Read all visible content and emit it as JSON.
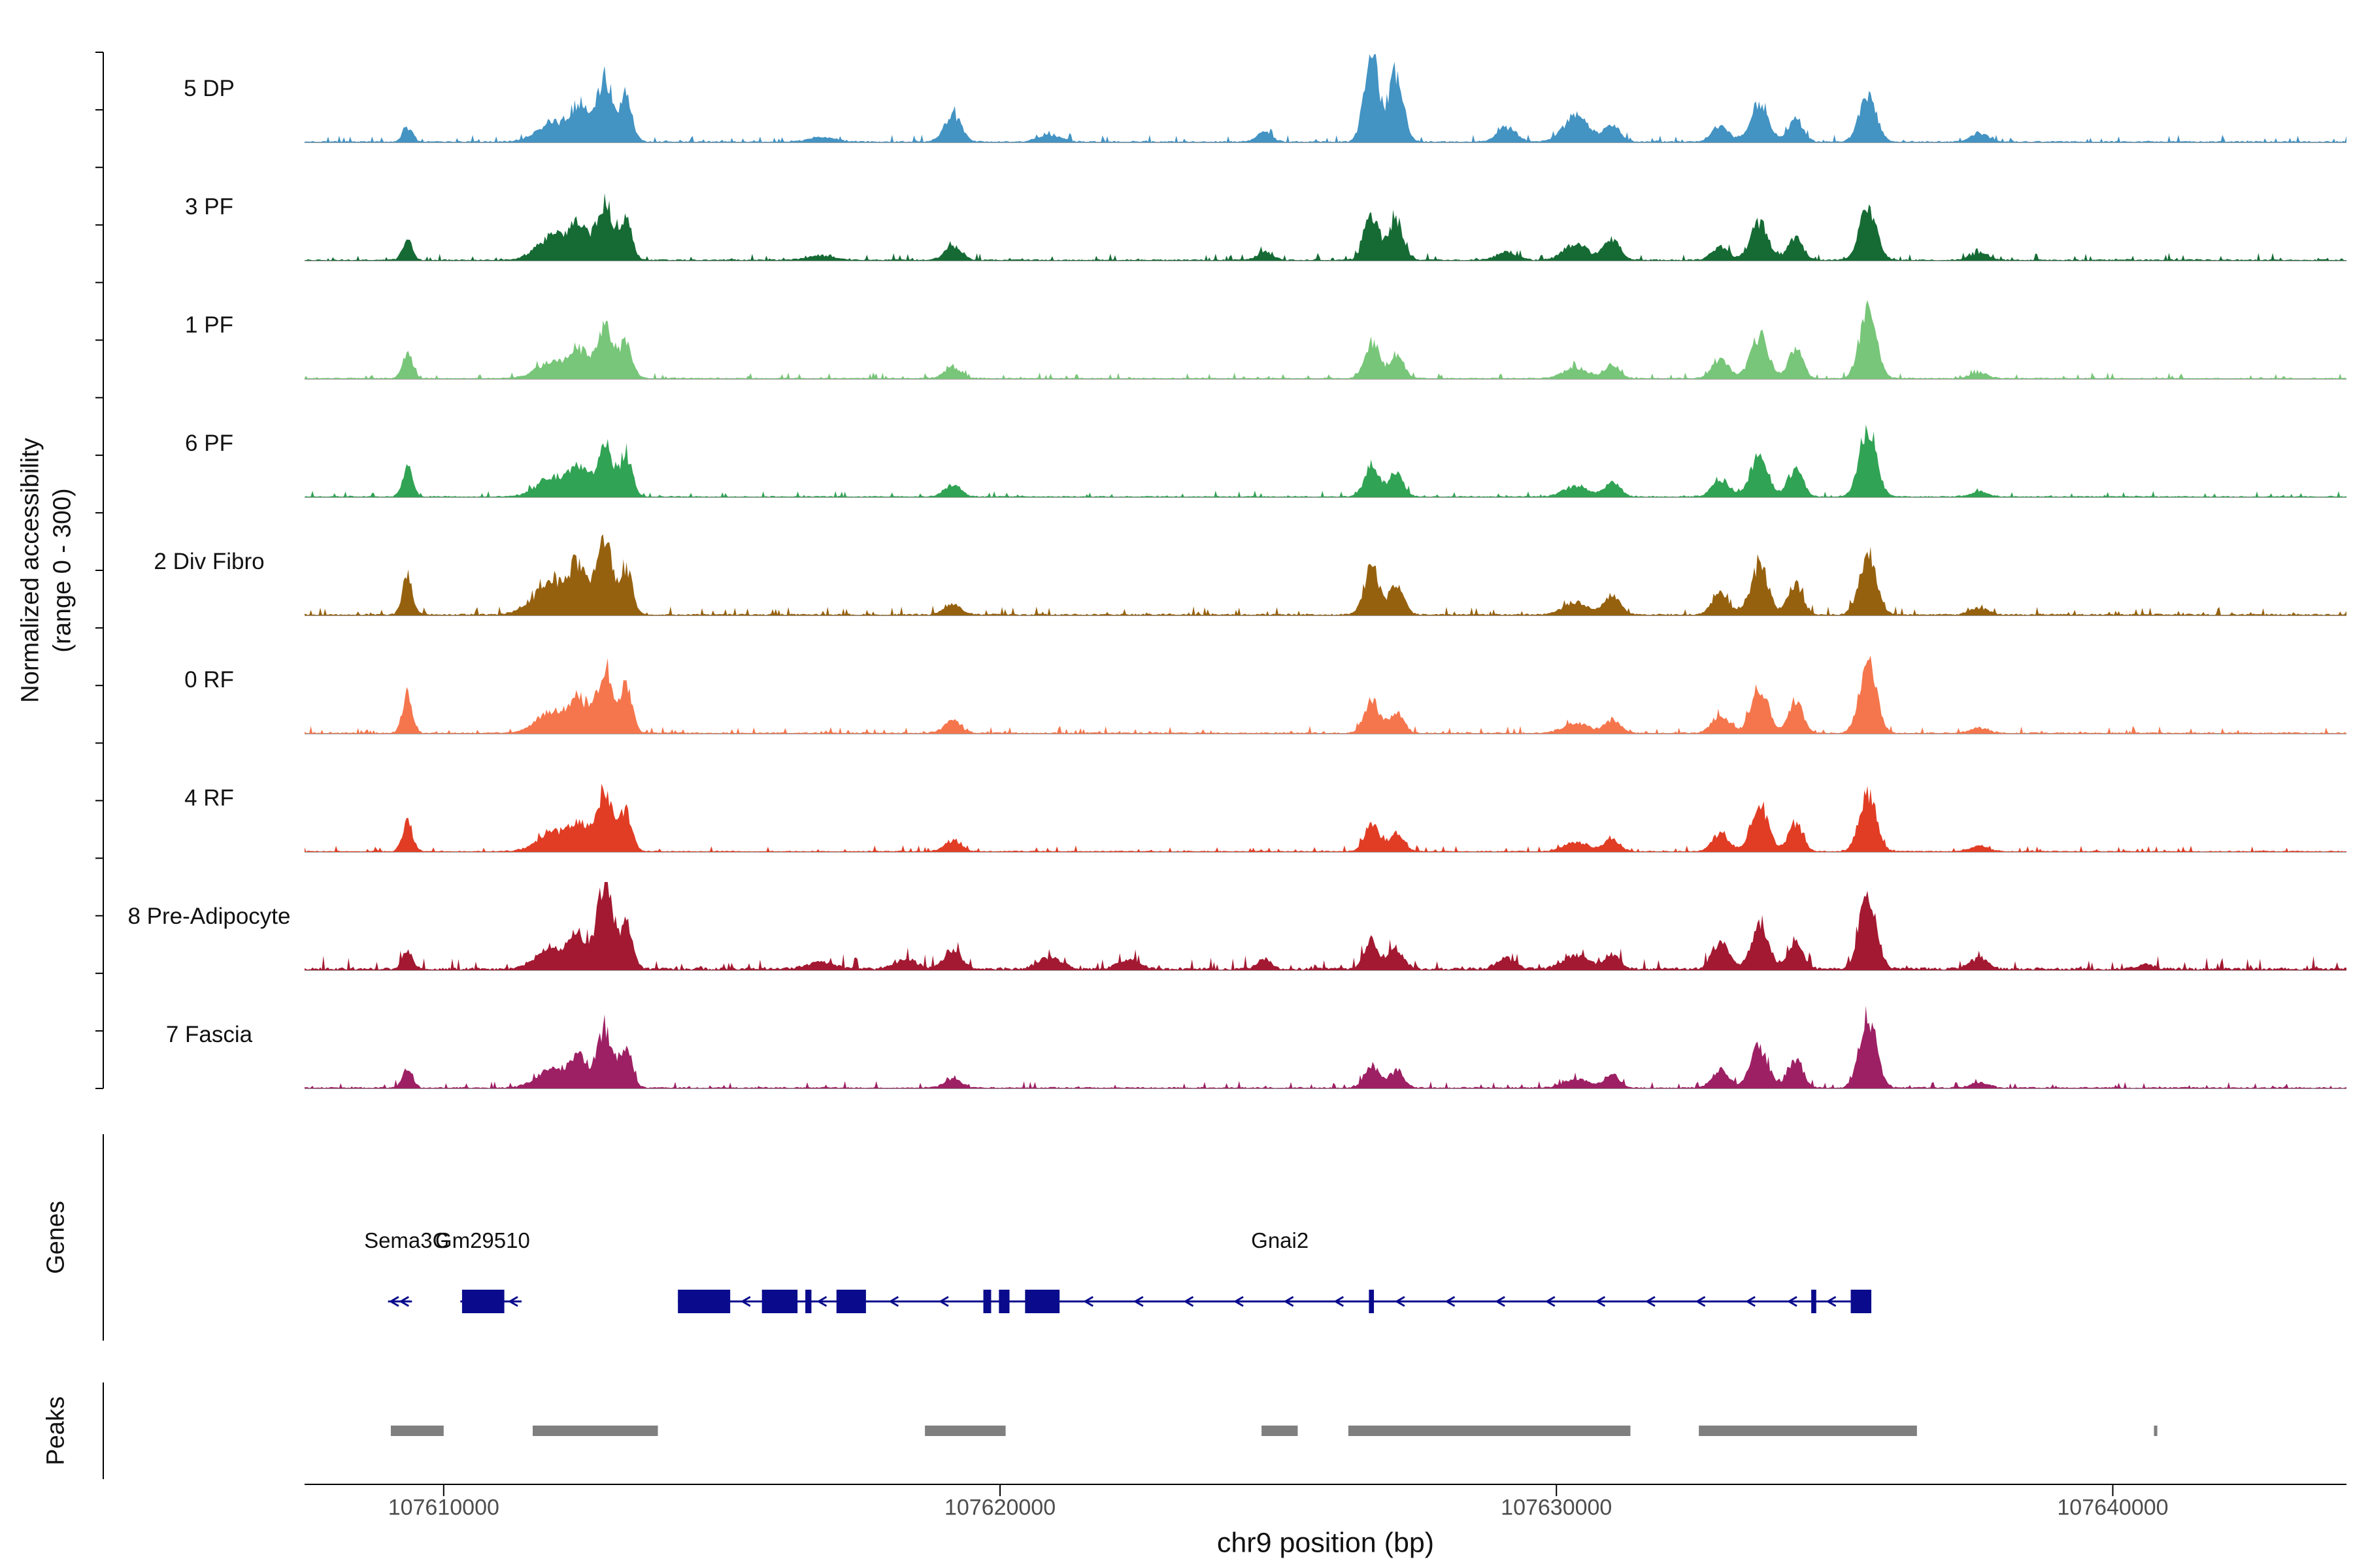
{
  "chart_data": {
    "type": "area",
    "title": "",
    "ylabel": "Normalized accessibility\n(range 0 - 300)",
    "xlabel": "chr9 position (bp)",
    "genes_section_label": "Genes",
    "peaks_section_label": "Peaks",
    "x_range_bp": [
      107607500,
      107644200
    ],
    "y_range_per_track": [
      0,
      300
    ],
    "x_ticks": [
      {
        "bp": 107610000,
        "label": "107610000"
      },
      {
        "bp": 107620000,
        "label": "107620000"
      },
      {
        "bp": 107630000,
        "label": "107630000"
      },
      {
        "bp": 107640000,
        "label": "107640000"
      }
    ],
    "colors": {
      "gene": "#0a0a8c",
      "peak_bar": "#7f7f7f",
      "baseline": "#9e9e9e",
      "axis": "#000000"
    },
    "tracks": [
      {
        "label": "5 DP",
        "color": "#4393c3",
        "seed": 11,
        "noise": 0.03,
        "peaks": [
          [
            107609350,
            0.16,
            90
          ],
          [
            107612000,
            0.22,
            300
          ],
          [
            107612450,
            0.38,
            150
          ],
          [
            107612900,
            0.72,
            140
          ],
          [
            107613280,
            0.52,
            110
          ],
          [
            107616800,
            0.05,
            250
          ],
          [
            107619150,
            0.3,
            150
          ],
          [
            107620900,
            0.08,
            200
          ],
          [
            107624750,
            0.12,
            130
          ],
          [
            107626680,
            0.95,
            130
          ],
          [
            107627120,
            0.78,
            130
          ],
          [
            107629100,
            0.16,
            170
          ],
          [
            107630350,
            0.3,
            220
          ],
          [
            107631000,
            0.2,
            140
          ],
          [
            107632950,
            0.18,
            150
          ],
          [
            107633650,
            0.45,
            160
          ],
          [
            107634300,
            0.26,
            130
          ],
          [
            107635600,
            0.52,
            150
          ],
          [
            107637600,
            0.1,
            160
          ]
        ]
      },
      {
        "label": "3 PF",
        "color": "#166b35",
        "seed": 22,
        "noise": 0.03,
        "peaks": [
          [
            107609350,
            0.22,
            90
          ],
          [
            107612000,
            0.28,
            300
          ],
          [
            107612450,
            0.34,
            150
          ],
          [
            107612900,
            0.66,
            140
          ],
          [
            107613280,
            0.46,
            110
          ],
          [
            107616800,
            0.05,
            250
          ],
          [
            107619150,
            0.16,
            150
          ],
          [
            107624750,
            0.1,
            130
          ],
          [
            107626680,
            0.52,
            130
          ],
          [
            107627120,
            0.46,
            130
          ],
          [
            107629100,
            0.1,
            170
          ],
          [
            107630350,
            0.18,
            220
          ],
          [
            107631000,
            0.24,
            140
          ],
          [
            107632950,
            0.16,
            150
          ],
          [
            107633650,
            0.42,
            160
          ],
          [
            107634300,
            0.26,
            130
          ],
          [
            107635600,
            0.6,
            150
          ],
          [
            107637600,
            0.08,
            160
          ]
        ]
      },
      {
        "label": "1 PF",
        "color": "#78c679",
        "seed": 33,
        "noise": 0.025,
        "peaks": [
          [
            107609350,
            0.3,
            90
          ],
          [
            107612000,
            0.2,
            300
          ],
          [
            107612450,
            0.26,
            150
          ],
          [
            107612900,
            0.58,
            140
          ],
          [
            107613280,
            0.42,
            110
          ],
          [
            107619150,
            0.12,
            150
          ],
          [
            107626680,
            0.4,
            130
          ],
          [
            107627120,
            0.28,
            130
          ],
          [
            107630350,
            0.12,
            220
          ],
          [
            107631000,
            0.15,
            140
          ],
          [
            107632950,
            0.22,
            150
          ],
          [
            107633650,
            0.48,
            160
          ],
          [
            107634300,
            0.34,
            130
          ],
          [
            107635600,
            0.78,
            150
          ],
          [
            107637600,
            0.06,
            160
          ]
        ]
      },
      {
        "label": "6 PF",
        "color": "#31a354",
        "seed": 44,
        "noise": 0.025,
        "peaks": [
          [
            107609350,
            0.34,
            90
          ],
          [
            107612000,
            0.22,
            300
          ],
          [
            107612450,
            0.28,
            150
          ],
          [
            107612900,
            0.62,
            140
          ],
          [
            107613280,
            0.46,
            110
          ],
          [
            107619150,
            0.13,
            150
          ],
          [
            107626680,
            0.36,
            130
          ],
          [
            107627120,
            0.26,
            130
          ],
          [
            107630350,
            0.12,
            220
          ],
          [
            107631000,
            0.17,
            140
          ],
          [
            107632950,
            0.2,
            150
          ],
          [
            107633650,
            0.46,
            160
          ],
          [
            107634300,
            0.32,
            130
          ],
          [
            107635600,
            0.82,
            150
          ],
          [
            107637600,
            0.06,
            160
          ]
        ]
      },
      {
        "label": "2 Div Fibro",
        "color": "#96610f",
        "seed": 55,
        "noise": 0.035,
        "peaks": [
          [
            107609350,
            0.44,
            90
          ],
          [
            107612000,
            0.38,
            350
          ],
          [
            107612450,
            0.42,
            150
          ],
          [
            107612900,
            0.82,
            140
          ],
          [
            107613280,
            0.52,
            110
          ],
          [
            107619150,
            0.12,
            150
          ],
          [
            107626680,
            0.55,
            130
          ],
          [
            107627120,
            0.34,
            130
          ],
          [
            107630350,
            0.14,
            220
          ],
          [
            107631000,
            0.22,
            140
          ],
          [
            107632950,
            0.24,
            150
          ],
          [
            107633650,
            0.55,
            160
          ],
          [
            107634300,
            0.36,
            130
          ],
          [
            107635600,
            0.68,
            150
          ],
          [
            107637600,
            0.08,
            160
          ]
        ]
      },
      {
        "label": "0 RF",
        "color": "#f5764d",
        "seed": 66,
        "noise": 0.03,
        "peaks": [
          [
            107609350,
            0.42,
            90
          ],
          [
            107612000,
            0.26,
            300
          ],
          [
            107612450,
            0.32,
            150
          ],
          [
            107612900,
            0.76,
            140
          ],
          [
            107613280,
            0.5,
            110
          ],
          [
            107619150,
            0.14,
            150
          ],
          [
            107626680,
            0.36,
            130
          ],
          [
            107627120,
            0.24,
            130
          ],
          [
            107630350,
            0.12,
            220
          ],
          [
            107631000,
            0.15,
            140
          ],
          [
            107632950,
            0.22,
            150
          ],
          [
            107633650,
            0.5,
            160
          ],
          [
            107634300,
            0.36,
            130
          ],
          [
            107635600,
            0.78,
            150
          ],
          [
            107637600,
            0.06,
            160
          ]
        ]
      },
      {
        "label": "4 RF",
        "color": "#e13d25",
        "seed": 77,
        "noise": 0.025,
        "peaks": [
          [
            107609350,
            0.34,
            90
          ],
          [
            107612000,
            0.22,
            300
          ],
          [
            107612450,
            0.28,
            150
          ],
          [
            107612900,
            0.7,
            140
          ],
          [
            107613280,
            0.44,
            110
          ],
          [
            107619150,
            0.12,
            150
          ],
          [
            107626680,
            0.3,
            130
          ],
          [
            107627120,
            0.22,
            130
          ],
          [
            107630350,
            0.1,
            220
          ],
          [
            107631000,
            0.14,
            140
          ],
          [
            107632950,
            0.2,
            150
          ],
          [
            107633650,
            0.5,
            160
          ],
          [
            107634300,
            0.32,
            130
          ],
          [
            107635600,
            0.66,
            150
          ],
          [
            107637600,
            0.06,
            160
          ]
        ]
      },
      {
        "label": "8 Pre-Adipocyte",
        "color": "#a31931",
        "seed": 88,
        "noise": 0.055,
        "peaks": [
          [
            107609350,
            0.2,
            90
          ],
          [
            107612000,
            0.24,
            300
          ],
          [
            107612450,
            0.32,
            150
          ],
          [
            107612900,
            0.96,
            140
          ],
          [
            107613280,
            0.5,
            110
          ],
          [
            107616800,
            0.08,
            250
          ],
          [
            107618300,
            0.12,
            200
          ],
          [
            107619150,
            0.22,
            150
          ],
          [
            107620900,
            0.14,
            200
          ],
          [
            107622300,
            0.1,
            200
          ],
          [
            107624750,
            0.1,
            130
          ],
          [
            107626680,
            0.32,
            130
          ],
          [
            107627120,
            0.24,
            130
          ],
          [
            107629100,
            0.12,
            170
          ],
          [
            107630350,
            0.16,
            220
          ],
          [
            107631000,
            0.18,
            140
          ],
          [
            107632950,
            0.3,
            150
          ],
          [
            107633650,
            0.46,
            160
          ],
          [
            107634300,
            0.34,
            130
          ],
          [
            107635600,
            0.88,
            150
          ],
          [
            107637600,
            0.12,
            160
          ],
          [
            107640600,
            0.05,
            150
          ]
        ]
      },
      {
        "label": "7 Fascia",
        "color": "#9d2064",
        "seed": 99,
        "noise": 0.03,
        "peaks": [
          [
            107609350,
            0.2,
            90
          ],
          [
            107612000,
            0.22,
            300
          ],
          [
            107612450,
            0.28,
            150
          ],
          [
            107612900,
            0.66,
            140
          ],
          [
            107613280,
            0.46,
            110
          ],
          [
            107619150,
            0.1,
            150
          ],
          [
            107626680,
            0.26,
            130
          ],
          [
            107627120,
            0.2,
            130
          ],
          [
            107630350,
            0.1,
            220
          ],
          [
            107631000,
            0.14,
            140
          ],
          [
            107632950,
            0.2,
            150
          ],
          [
            107633650,
            0.46,
            160
          ],
          [
            107634300,
            0.34,
            130
          ],
          [
            107635600,
            0.8,
            150
          ],
          [
            107637600,
            0.06,
            160
          ]
        ]
      }
    ],
    "genes": [
      {
        "name": "Sema3G",
        "start": 107609000,
        "end": 107609430,
        "strand": "-",
        "label_bp": 107609335,
        "exons": [],
        "chevrons": [
          107609120,
          107609300
        ]
      },
      {
        "name": "Gm29510",
        "start": 107610300,
        "end": 107611400,
        "strand": "-",
        "label_bp": 107610700,
        "exons": [
          [
            107610330,
            107611090
          ]
        ],
        "chevrons": [
          107611260
        ]
      },
      {
        "name": "Gnai2",
        "start": 107614210,
        "end": 107635660,
        "strand": "-",
        "label_bp": 107625030,
        "exons": [
          [
            107614210,
            107615150
          ],
          [
            107615720,
            107616360
          ],
          [
            107616500,
            107616610
          ],
          [
            107617060,
            107617590
          ],
          [
            107619700,
            107619840
          ],
          [
            107619980,
            107620170
          ],
          [
            107620450,
            107621070
          ],
          [
            107626630,
            107626720
          ],
          [
            107634580,
            107634670
          ],
          [
            107635290,
            107635660
          ]
        ],
        "chevrons": [
          107615440,
          107616810,
          107618100,
          107619000,
          107621600,
          107622500,
          107623400,
          107624300,
          107625200,
          107626100,
          107627200,
          107628100,
          107629000,
          107629900,
          107630800,
          107631700,
          107632600,
          107633500,
          107634250,
          107634950
        ]
      }
    ],
    "peak_regions_bp": [
      [
        107609050,
        107610000
      ],
      [
        107611600,
        107613850
      ],
      [
        107618650,
        107620100
      ],
      [
        107624700,
        107625350
      ],
      [
        107626260,
        107631330
      ],
      [
        107632560,
        107636480
      ],
      [
        107640740,
        107640800
      ]
    ]
  }
}
